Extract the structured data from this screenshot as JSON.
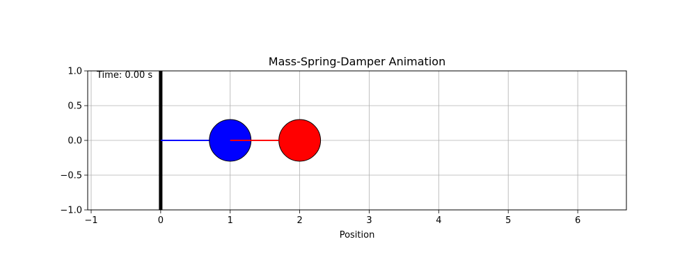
{
  "chart_data": {
    "type": "scatter",
    "title": "Mass-Spring-Damper Animation",
    "xlabel": "Position",
    "ylabel": "",
    "xlim": [
      -1.05,
      6.7
    ],
    "ylim": [
      -1.0,
      1.0
    ],
    "xticks": [
      -1,
      0,
      1,
      2,
      3,
      4,
      5,
      6
    ],
    "yticks": [
      -1.0,
      -0.5,
      0.0,
      0.5,
      1.0
    ],
    "xtick_labels": [
      "−1",
      "0",
      "1",
      "2",
      "3",
      "4",
      "5",
      "6"
    ],
    "ytick_labels": [
      "−1.0",
      "−0.5",
      "0.0",
      "0.5",
      "1.0"
    ],
    "grid": true,
    "annotation": "Time: 0.00 s",
    "wall": {
      "x": 0,
      "color": "#000000"
    },
    "springs": [
      {
        "name": "spring-1",
        "x": [
          0,
          1
        ],
        "y": [
          0,
          0
        ],
        "color": "#0000ff"
      },
      {
        "name": "spring-2",
        "x": [
          1,
          2
        ],
        "y": [
          0,
          0
        ],
        "color": "#ff0000"
      }
    ],
    "masses": [
      {
        "name": "mass-1",
        "x": 1,
        "y": 0,
        "color": "#0000ff"
      },
      {
        "name": "mass-2",
        "x": 2,
        "y": 0,
        "color": "#ff0000"
      }
    ]
  }
}
